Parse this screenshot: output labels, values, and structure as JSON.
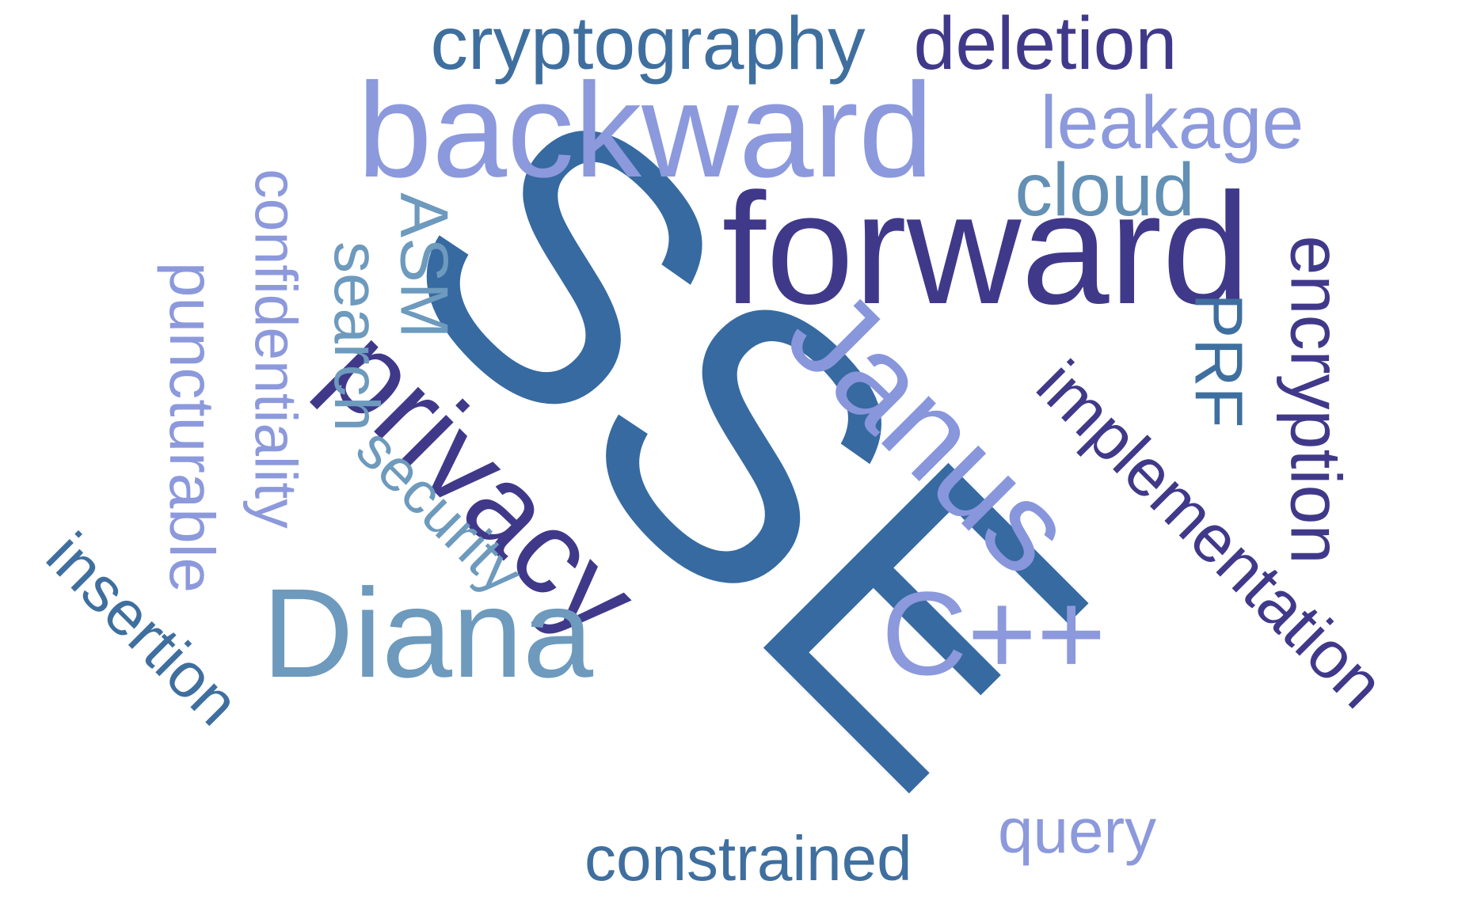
{
  "palette": {
    "dark_indigo": "#40398a",
    "steel_blue": "#366aa1",
    "mid_blue": "#3f6f9f",
    "slate_blue": "#6390b4",
    "light_steel": "#6d9abd",
    "periwinkle": "#8c99dc",
    "lavender": "#8896dc"
  },
  "words": [
    {
      "text": "SSE",
      "color": "#366aa1"
    },
    {
      "text": "forward",
      "color": "#40398a"
    },
    {
      "text": "backward",
      "color": "#8c99dc"
    },
    {
      "text": "privacy",
      "color": "#40398a"
    },
    {
      "text": "Janus",
      "color": "#8896dc"
    },
    {
      "text": "Diana",
      "color": "#6d9abd"
    },
    {
      "text": "C++",
      "color": "#8c99dc"
    },
    {
      "text": "cryptography",
      "color": "#3f6f9f"
    },
    {
      "text": "deletion",
      "color": "#40398a"
    },
    {
      "text": "leakage",
      "color": "#8c99dc"
    },
    {
      "text": "cloud",
      "color": "#6390b4"
    },
    {
      "text": "encryption",
      "color": "#40398a"
    },
    {
      "text": "implementation",
      "color": "#40398a"
    },
    {
      "text": "PRF",
      "color": "#3f6f9f"
    },
    {
      "text": "ASM",
      "color": "#6d9abd"
    },
    {
      "text": "search",
      "color": "#6d9abd"
    },
    {
      "text": "security",
      "color": "#6d9abd"
    },
    {
      "text": "confidentiality",
      "color": "#8c99dc"
    },
    {
      "text": "puncturable",
      "color": "#8c99dc"
    },
    {
      "text": "insertion",
      "color": "#3f6f9f"
    },
    {
      "text": "constrained",
      "color": "#3f6f9f"
    },
    {
      "text": "query",
      "color": "#8c99dc"
    }
  ]
}
